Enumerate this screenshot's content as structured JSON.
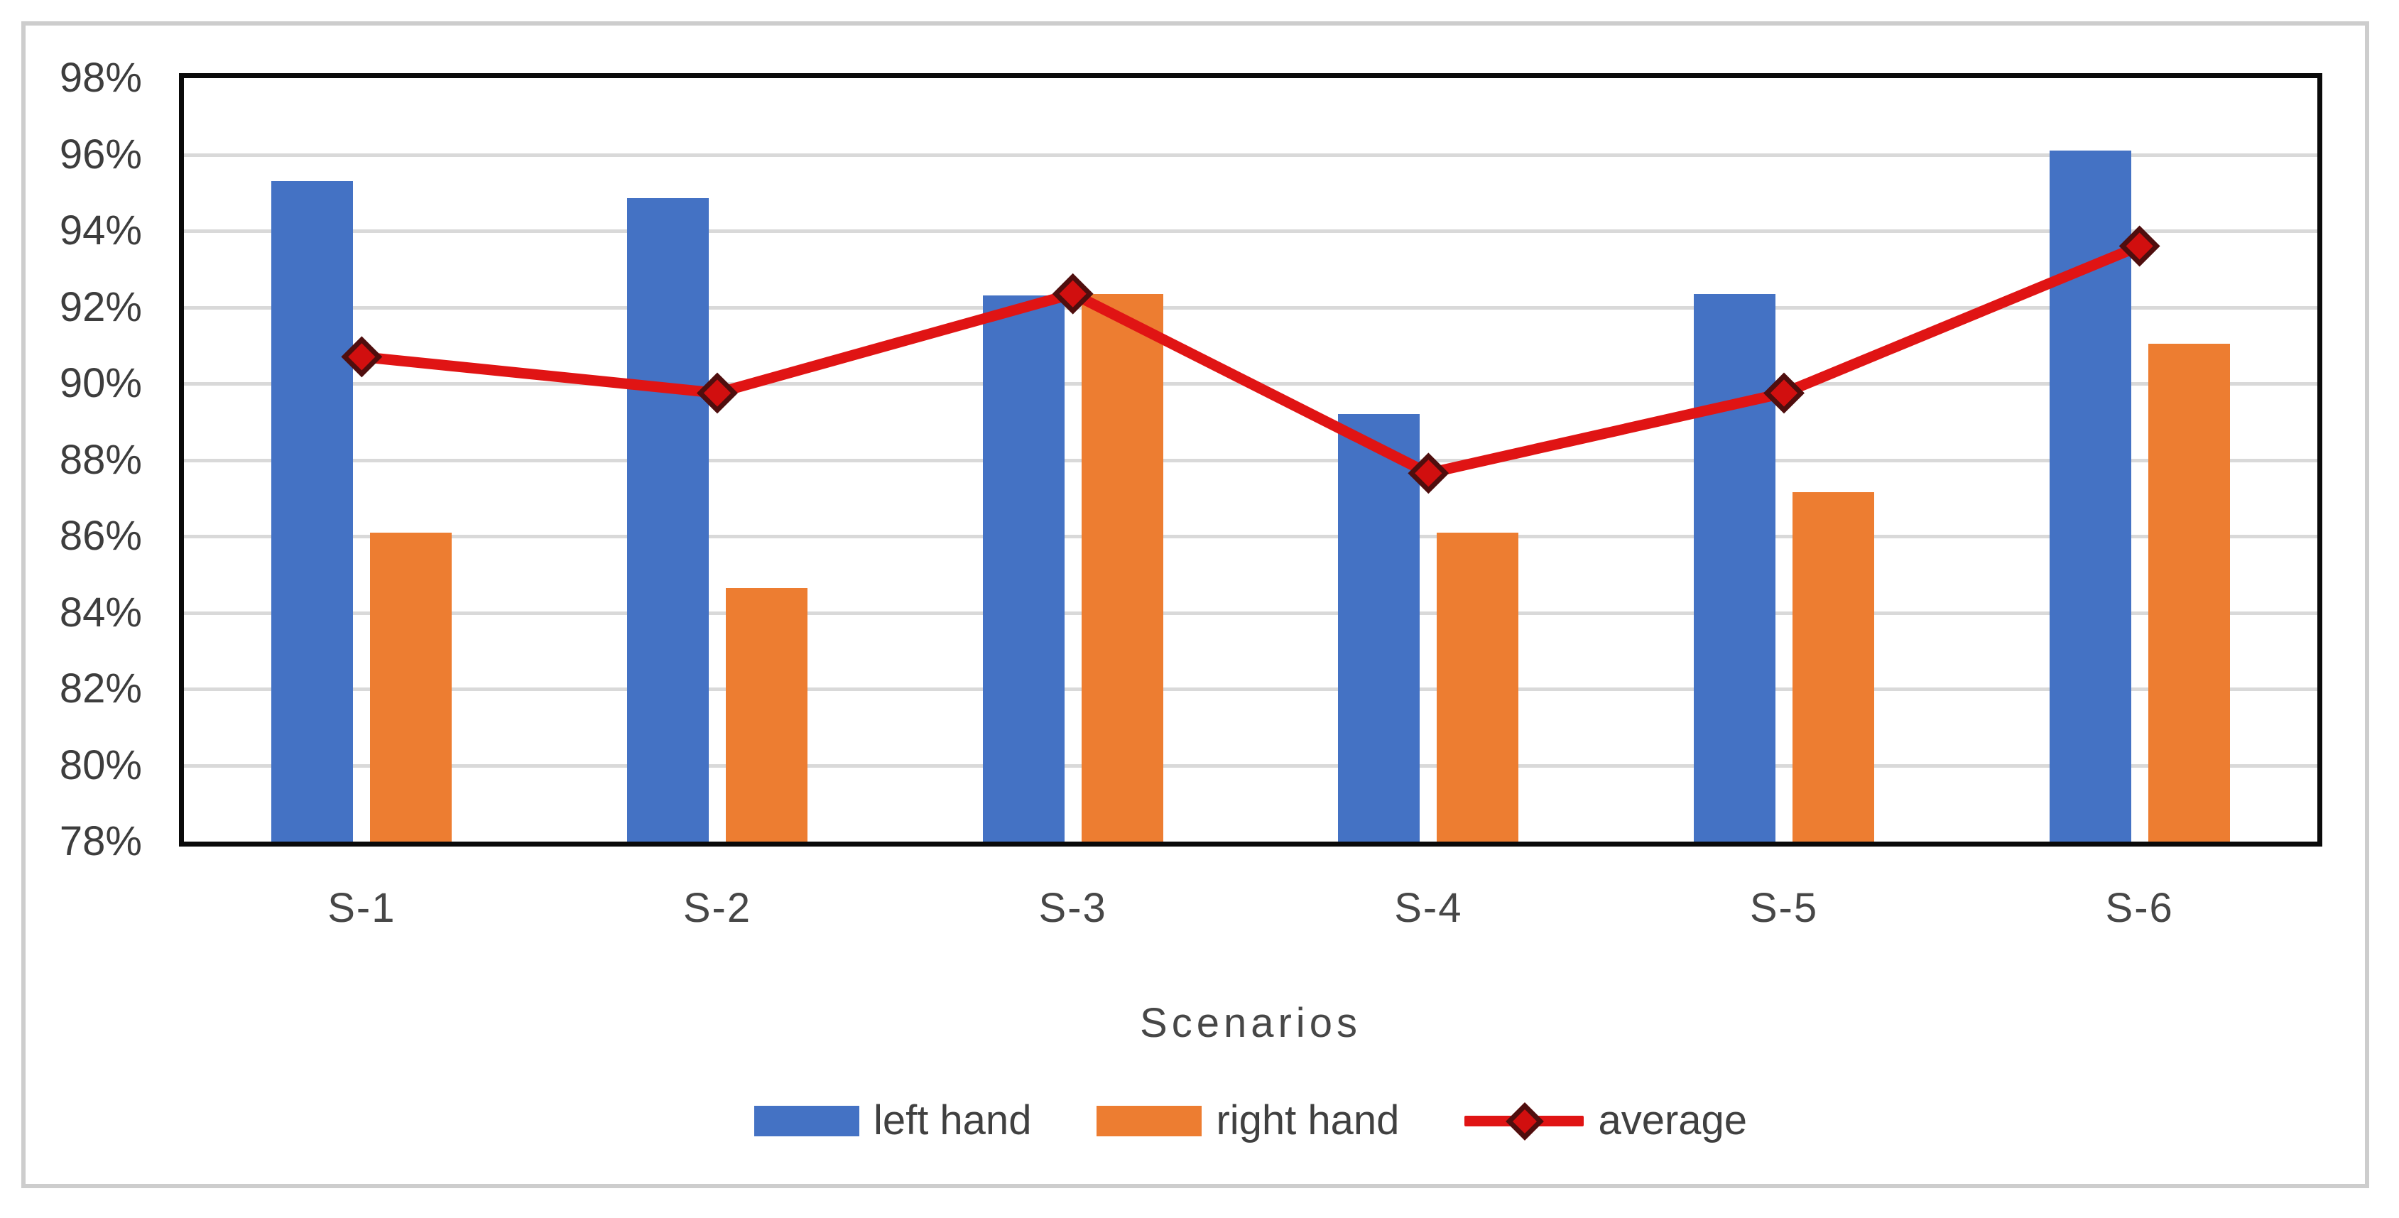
{
  "chart_data": {
    "type": "bar",
    "subtype": "grouped-bars-with-line-overlay",
    "categories": [
      "S-1",
      "S-2",
      "S-3",
      "S-4",
      "S-5",
      "S-6"
    ],
    "series": [
      {
        "name": "left hand",
        "type": "bar",
        "color": "#4472C4",
        "values": [
          95.3,
          94.85,
          92.3,
          89.2,
          92.35,
          96.1
        ]
      },
      {
        "name": "right hand",
        "type": "bar",
        "color": "#ED7D31",
        "values": [
          86.1,
          84.65,
          92.35,
          86.1,
          87.15,
          91.05
        ]
      },
      {
        "name": "average",
        "type": "line",
        "color": "#e01414",
        "marker": "diamond",
        "marker_fill": "#d10f0f",
        "marker_edge": "#4f0e0e",
        "values": [
          90.7,
          89.75,
          92.35,
          87.65,
          89.75,
          93.6
        ]
      }
    ],
    "title": "",
    "xlabel": "Scenarios",
    "ylabel": "",
    "unit": "%",
    "y_axis": {
      "min": 78,
      "max": 98,
      "step": 2,
      "tick_labels": [
        "98%",
        "96%",
        "94%",
        "92%",
        "90%",
        "88%",
        "86%",
        "84%",
        "82%",
        "80%",
        "78%"
      ]
    },
    "grid": true,
    "gridline_color": "#d9d9d9",
    "plot_border_color": "#0a0a0a",
    "legend_position": "bottom"
  },
  "legend": {
    "items": [
      {
        "label": "left hand"
      },
      {
        "label": "right hand"
      },
      {
        "label": "average"
      }
    ]
  }
}
